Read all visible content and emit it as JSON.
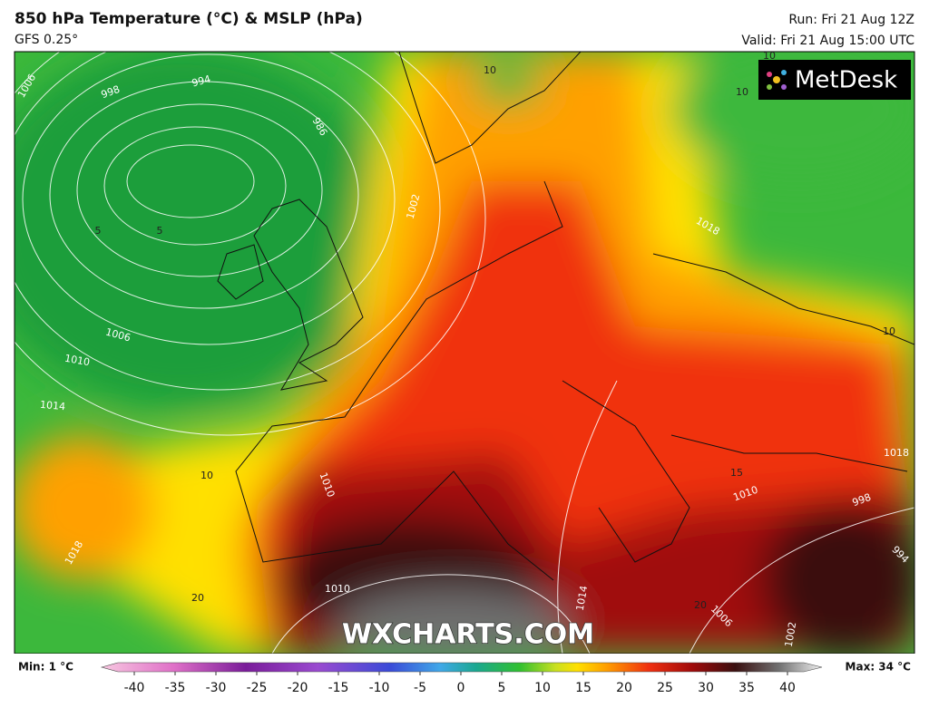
{
  "header": {
    "title": "850 hPa Temperature (°C) & MSLP (hPa)",
    "model": "GFS 0.25°",
    "run": "Run: Fri 21 Aug 12Z",
    "valid": "Valid: Fri 21 Aug 15:00 UTC"
  },
  "map": {
    "logo": "MetDesk",
    "watermark": "WXCHARTS.COM",
    "isobar_labels": [
      "1006",
      "998",
      "994",
      "986",
      "1002",
      "1006",
      "1010",
      "1014",
      "1018",
      "1010",
      "1010",
      "1018",
      "1014",
      "1006",
      "1002",
      "998",
      "1010",
      "1018",
      "994"
    ],
    "isotherm_labels": [
      "10",
      "10",
      "5",
      "5",
      "10",
      "10",
      "10",
      "15",
      "20",
      "20"
    ]
  },
  "colorbar": {
    "min_label": "Min: 1 °C",
    "max_label": "Max: 34 °C",
    "ticks": [
      -40,
      -35,
      -30,
      -25,
      -20,
      -15,
      -10,
      -5,
      0,
      5,
      10,
      15,
      20,
      25,
      30,
      35,
      40
    ]
  }
}
